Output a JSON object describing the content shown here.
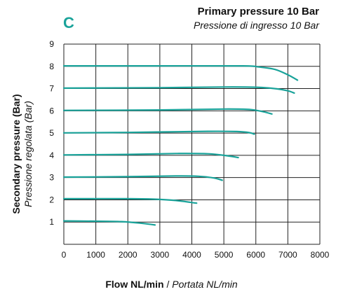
{
  "panel_label": "C",
  "title": "Primary pressure 10 Bar",
  "subtitle": "Pressione di ingresso 10 Bar",
  "ylabel": "Secondary pressure (Bar)",
  "ylabel_it": "Pressione regolata (Bar)",
  "xlabel": "Flow NL/min",
  "xlabel_sep": " / ",
  "xlabel_it": "Portata NL/min",
  "chart_data": {
    "type": "line",
    "title": "Primary pressure 10 Bar",
    "subtitle": "Pressione di ingresso 10 Bar",
    "xlabel": "Flow NL/min / Portata NL/min",
    "ylabel": "Secondary pressure (Bar) / Pressione regolata (Bar)",
    "xlim": [
      0,
      8000
    ],
    "ylim": [
      0,
      9
    ],
    "xticks": [
      0,
      1000,
      2000,
      3000,
      4000,
      5000,
      6000,
      7000,
      8000
    ],
    "yticks": [
      1,
      2,
      3,
      4,
      5,
      6,
      7,
      8,
      9
    ],
    "grid": true,
    "color": "#1aa39a",
    "series": [
      {
        "x": [
          0,
          1000,
          1800,
          2400,
          2850
        ],
        "y": [
          1.05,
          1.04,
          1.02,
          0.95,
          0.87
        ]
      },
      {
        "x": [
          0,
          2000,
          2800,
          3500,
          4150
        ],
        "y": [
          2.05,
          2.05,
          2.03,
          1.97,
          1.85
        ]
      },
      {
        "x": [
          0,
          2000,
          3500,
          4200,
          4700,
          4950
        ],
        "y": [
          3.02,
          3.04,
          3.07,
          3.06,
          2.98,
          2.88
        ]
      },
      {
        "x": [
          0,
          2000,
          3500,
          4500,
          5100,
          5450
        ],
        "y": [
          4.02,
          4.04,
          4.08,
          4.07,
          3.98,
          3.9
        ]
      },
      {
        "x": [
          0,
          2000,
          4500,
          5400,
          5800,
          5950
        ],
        "y": [
          5.01,
          5.03,
          5.08,
          5.07,
          5.02,
          4.95
        ]
      },
      {
        "x": [
          0,
          3000,
          5000,
          5800,
          6200,
          6500
        ],
        "y": [
          6.02,
          6.04,
          6.08,
          6.06,
          5.97,
          5.86
        ]
      },
      {
        "x": [
          0,
          3000,
          5000,
          6000,
          6600,
          7000,
          7200
        ],
        "y": [
          7.02,
          7.04,
          7.07,
          7.06,
          7.0,
          6.9,
          6.8
        ]
      },
      {
        "x": [
          0,
          3000,
          5600,
          6100,
          6600,
          7000,
          7300
        ],
        "y": [
          8.02,
          8.02,
          8.02,
          7.97,
          7.86,
          7.62,
          7.38
        ]
      }
    ]
  }
}
